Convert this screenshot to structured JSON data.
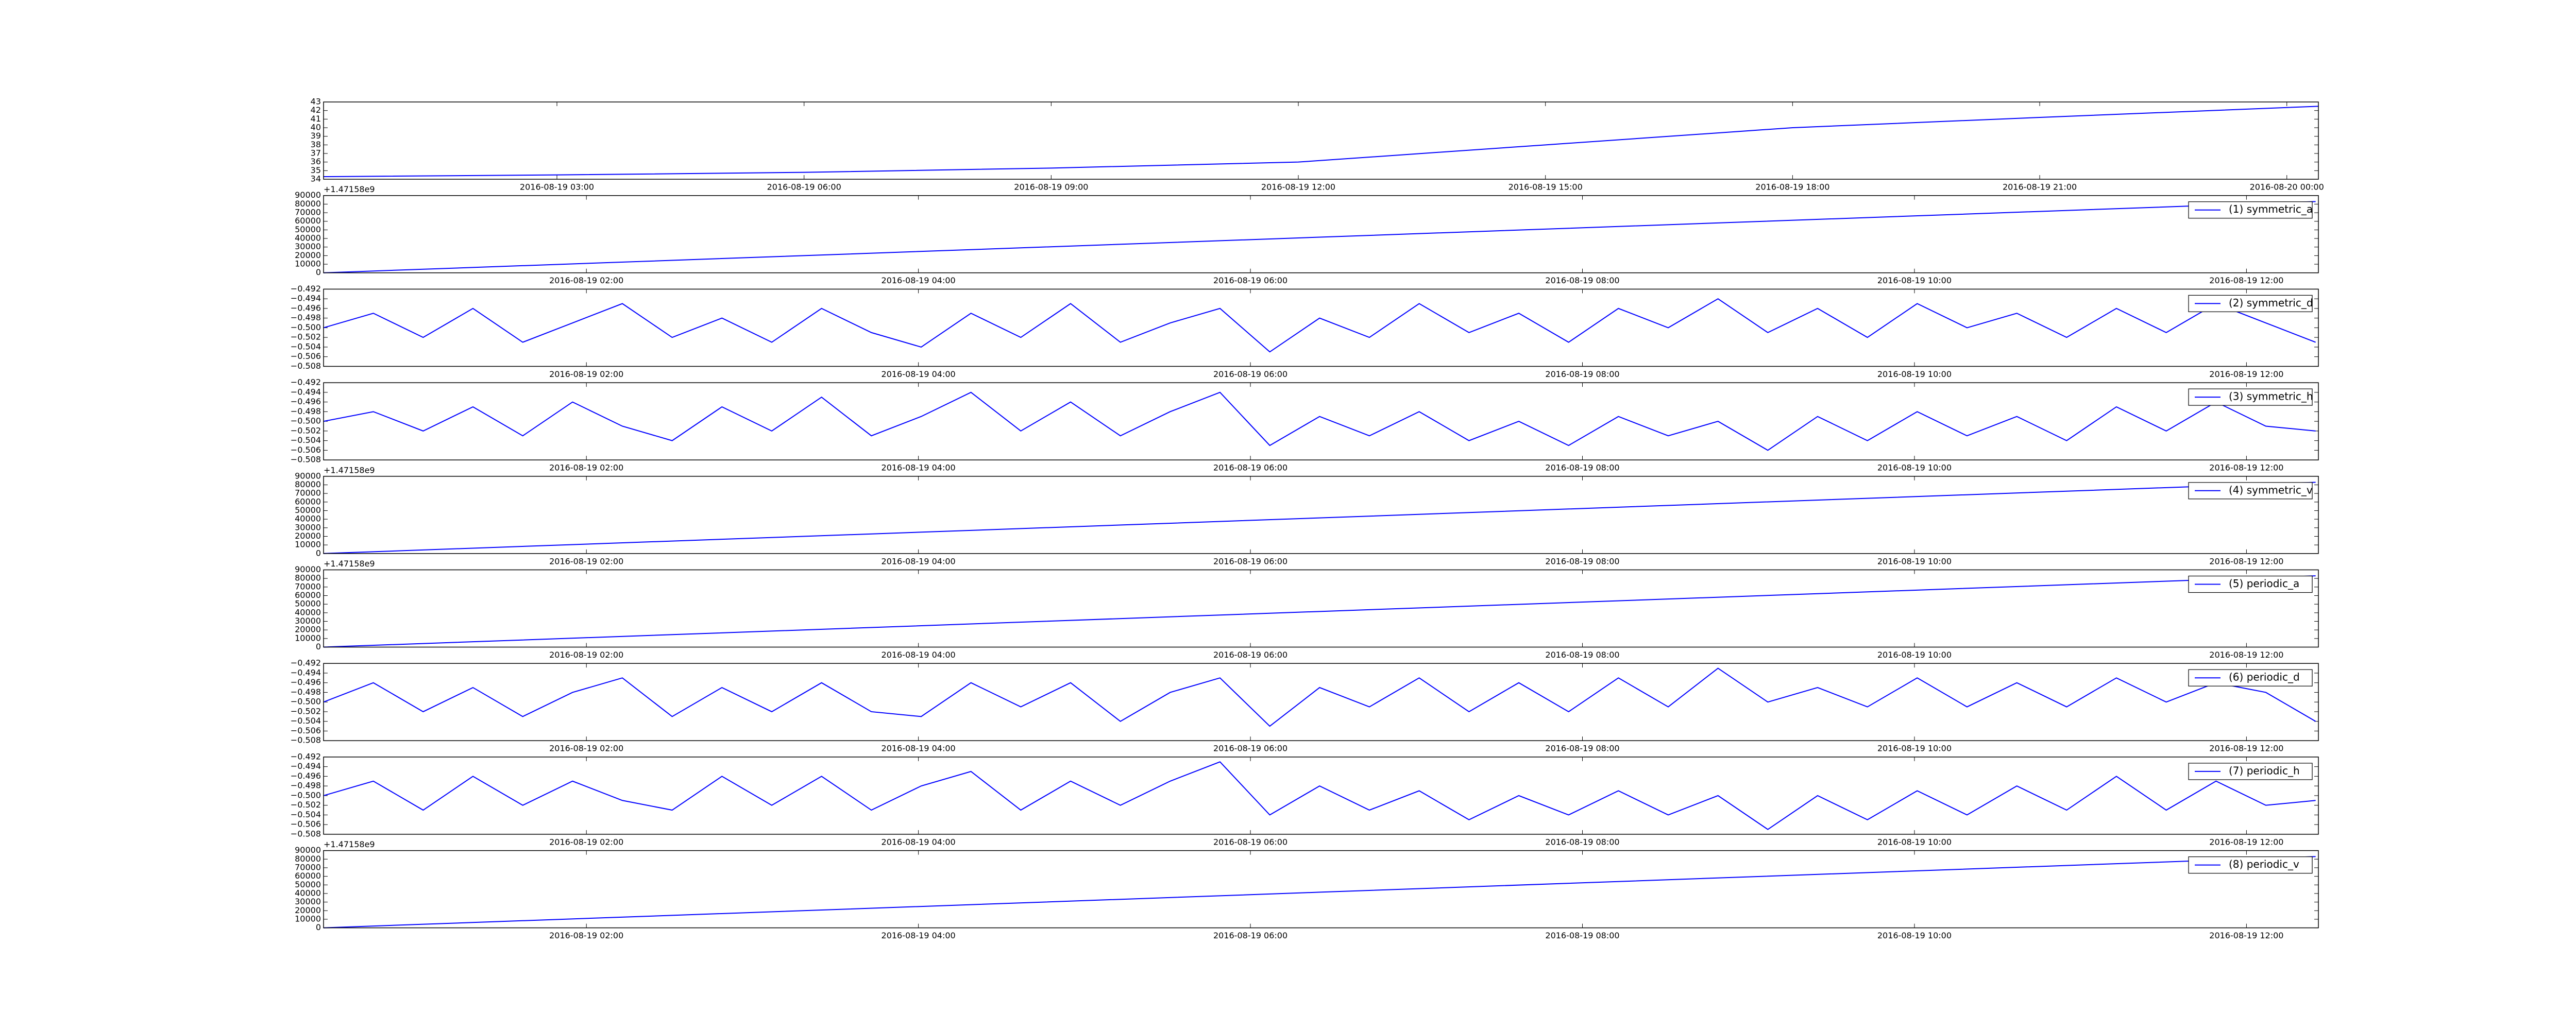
{
  "chart_data": [
    {
      "type": "line",
      "x": [
        "2016-08-19 00:10",
        "2016-08-19 03:00",
        "2016-08-19 06:00",
        "2016-08-19 09:00",
        "2016-08-19 12:00",
        "2016-08-19 15:00",
        "2016-08-19 18:00",
        "2016-08-19 21:00",
        "2016-08-20 00:23"
      ],
      "series": [
        {
          "color": "#0000ff",
          "values": [
            34.3,
            34.5,
            34.8,
            35.3,
            36.0,
            38.0,
            40.0,
            41.2,
            42.5
          ]
        }
      ],
      "xlim": [
        "2016-08-19 00:10",
        "2016-08-20 00:23"
      ],
      "ylim": [
        34,
        43
      ],
      "xticks": [
        "2016-08-19 03:00",
        "2016-08-19 06:00",
        "2016-08-19 09:00",
        "2016-08-19 12:00",
        "2016-08-19 15:00",
        "2016-08-19 18:00",
        "2016-08-19 21:00",
        "2016-08-20 00:00"
      ],
      "yticks": [
        34,
        35,
        36,
        37,
        38,
        39,
        40,
        41,
        42,
        43
      ]
    },
    {
      "type": "line",
      "x": [
        "2016-08-19 00:25",
        "2016-08-19 06:25",
        "2016-08-19 12:25"
      ],
      "series": [
        {
          "name": "(1) symmetric_a",
          "color": "#0000ff",
          "values": [
            0,
            41500,
            83000
          ]
        }
      ],
      "xlim": [
        "2016-08-19 00:25",
        "2016-08-19 12:26"
      ],
      "ylim": [
        0,
        90000
      ],
      "xticks": [
        "2016-08-19 02:00",
        "2016-08-19 04:00",
        "2016-08-19 06:00",
        "2016-08-19 08:00",
        "2016-08-19 10:00",
        "2016-08-19 12:00"
      ],
      "yticks": [
        0,
        10000,
        20000,
        30000,
        40000,
        50000,
        60000,
        70000,
        80000,
        90000
      ],
      "y_offset_text": "+1.47158e9",
      "legend": "upper right"
    },
    {
      "type": "line",
      "x": [
        "2016-08-19 00:25",
        "2016-08-19 00:43",
        "2016-08-19 01:01",
        "2016-08-19 01:19",
        "2016-08-19 01:37",
        "2016-08-19 01:55",
        "2016-08-19 02:13",
        "2016-08-19 02:31",
        "2016-08-19 02:49",
        "2016-08-19 03:07",
        "2016-08-19 03:25",
        "2016-08-19 03:43",
        "2016-08-19 04:01",
        "2016-08-19 04:19",
        "2016-08-19 04:37",
        "2016-08-19 04:55",
        "2016-08-19 05:13",
        "2016-08-19 05:31",
        "2016-08-19 05:49",
        "2016-08-19 06:07",
        "2016-08-19 06:25",
        "2016-08-19 06:43",
        "2016-08-19 07:01",
        "2016-08-19 07:19",
        "2016-08-19 07:37",
        "2016-08-19 07:55",
        "2016-08-19 08:13",
        "2016-08-19 08:31",
        "2016-08-19 08:49",
        "2016-08-19 09:07",
        "2016-08-19 09:25",
        "2016-08-19 09:43",
        "2016-08-19 10:01",
        "2016-08-19 10:19",
        "2016-08-19 10:37",
        "2016-08-19 10:55",
        "2016-08-19 11:13",
        "2016-08-19 11:31",
        "2016-08-19 11:49",
        "2016-08-19 12:07",
        "2016-08-19 12:25"
      ],
      "series": [
        {
          "name": "(2) symmetric_d",
          "color": "#0000ff",
          "values": [
            -0.5,
            -0.497,
            -0.502,
            -0.496,
            -0.503,
            -0.499,
            -0.495,
            -0.502,
            -0.498,
            -0.503,
            -0.496,
            -0.501,
            -0.504,
            -0.497,
            -0.502,
            -0.495,
            -0.503,
            -0.499,
            -0.496,
            -0.505,
            -0.498,
            -0.502,
            -0.495,
            -0.501,
            -0.497,
            -0.503,
            -0.496,
            -0.5,
            -0.494,
            -0.501,
            -0.496,
            -0.502,
            -0.495,
            -0.5,
            -0.497,
            -0.502,
            -0.496,
            -0.501,
            -0.495,
            -0.499,
            -0.503
          ]
        }
      ],
      "xlim": [
        "2016-08-19 00:25",
        "2016-08-19 12:26"
      ],
      "ylim": [
        -0.508,
        -0.492
      ],
      "xticks": [
        "2016-08-19 02:00",
        "2016-08-19 04:00",
        "2016-08-19 06:00",
        "2016-08-19 08:00",
        "2016-08-19 10:00",
        "2016-08-19 12:00"
      ],
      "yticks": [
        {
          "value": -0.508,
          "label": "−0.508"
        },
        {
          "value": -0.506,
          "label": "−0.506"
        },
        {
          "value": -0.504,
          "label": "−0.504"
        },
        {
          "value": -0.502,
          "label": "−0.502"
        },
        {
          "value": -0.5,
          "label": "−0.500"
        },
        {
          "value": -0.498,
          "label": "−0.498"
        },
        {
          "value": -0.496,
          "label": "−0.496"
        },
        {
          "value": -0.494,
          "label": "−0.494"
        },
        {
          "value": -0.492,
          "label": "−0.492"
        }
      ],
      "legend": "upper right"
    },
    {
      "type": "line",
      "x": [
        "2016-08-19 00:25",
        "2016-08-19 00:43",
        "2016-08-19 01:01",
        "2016-08-19 01:19",
        "2016-08-19 01:37",
        "2016-08-19 01:55",
        "2016-08-19 02:13",
        "2016-08-19 02:31",
        "2016-08-19 02:49",
        "2016-08-19 03:07",
        "2016-08-19 03:25",
        "2016-08-19 03:43",
        "2016-08-19 04:01",
        "2016-08-19 04:19",
        "2016-08-19 04:37",
        "2016-08-19 04:55",
        "2016-08-19 05:13",
        "2016-08-19 05:31",
        "2016-08-19 05:49",
        "2016-08-19 06:07",
        "2016-08-19 06:25",
        "2016-08-19 06:43",
        "2016-08-19 07:01",
        "2016-08-19 07:19",
        "2016-08-19 07:37",
        "2016-08-19 07:55",
        "2016-08-19 08:13",
        "2016-08-19 08:31",
        "2016-08-19 08:49",
        "2016-08-19 09:07",
        "2016-08-19 09:25",
        "2016-08-19 09:43",
        "2016-08-19 10:01",
        "2016-08-19 10:19",
        "2016-08-19 10:37",
        "2016-08-19 10:55",
        "2016-08-19 11:13",
        "2016-08-19 11:31",
        "2016-08-19 11:49",
        "2016-08-19 12:07",
        "2016-08-19 12:25"
      ],
      "series": [
        {
          "name": "(3) symmetric_h",
          "color": "#0000ff",
          "values": [
            -0.5,
            -0.498,
            -0.502,
            -0.497,
            -0.503,
            -0.496,
            -0.501,
            -0.504,
            -0.497,
            -0.502,
            -0.495,
            -0.503,
            -0.499,
            -0.494,
            -0.502,
            -0.496,
            -0.503,
            -0.498,
            -0.494,
            -0.505,
            -0.499,
            -0.503,
            -0.498,
            -0.504,
            -0.5,
            -0.505,
            -0.499,
            -0.503,
            -0.5,
            -0.506,
            -0.499,
            -0.504,
            -0.498,
            -0.503,
            -0.499,
            -0.504,
            -0.497,
            -0.502,
            -0.496,
            -0.501,
            -0.502
          ]
        }
      ],
      "xlim": [
        "2016-08-19 00:25",
        "2016-08-19 12:26"
      ],
      "ylim": [
        -0.508,
        -0.492
      ],
      "xticks": [
        "2016-08-19 02:00",
        "2016-08-19 04:00",
        "2016-08-19 06:00",
        "2016-08-19 08:00",
        "2016-08-19 10:00",
        "2016-08-19 12:00"
      ],
      "yticks": [
        {
          "value": -0.508,
          "label": "−0.508"
        },
        {
          "value": -0.506,
          "label": "−0.506"
        },
        {
          "value": -0.504,
          "label": "−0.504"
        },
        {
          "value": -0.502,
          "label": "−0.502"
        },
        {
          "value": -0.5,
          "label": "−0.500"
        },
        {
          "value": -0.498,
          "label": "−0.498"
        },
        {
          "value": -0.496,
          "label": "−0.496"
        },
        {
          "value": -0.494,
          "label": "−0.494"
        },
        {
          "value": -0.492,
          "label": "−0.492"
        }
      ],
      "legend": "upper right"
    },
    {
      "type": "line",
      "x": [
        "2016-08-19 00:25",
        "2016-08-19 06:25",
        "2016-08-19 12:25"
      ],
      "series": [
        {
          "name": "(4) symmetric_v",
          "color": "#0000ff",
          "values": [
            0,
            41500,
            83000
          ]
        }
      ],
      "xlim": [
        "2016-08-19 00:25",
        "2016-08-19 12:26"
      ],
      "ylim": [
        0,
        90000
      ],
      "xticks": [
        "2016-08-19 02:00",
        "2016-08-19 04:00",
        "2016-08-19 06:00",
        "2016-08-19 08:00",
        "2016-08-19 10:00",
        "2016-08-19 12:00"
      ],
      "yticks": [
        0,
        10000,
        20000,
        30000,
        40000,
        50000,
        60000,
        70000,
        80000,
        90000
      ],
      "y_offset_text": "+1.47158e9",
      "legend": "upper right"
    },
    {
      "type": "line",
      "x": [
        "2016-08-19 00:25",
        "2016-08-19 06:25",
        "2016-08-19 12:25"
      ],
      "series": [
        {
          "name": "(5) periodic_a",
          "color": "#0000ff",
          "values": [
            0,
            41500,
            83000
          ]
        }
      ],
      "xlim": [
        "2016-08-19 00:25",
        "2016-08-19 12:26"
      ],
      "ylim": [
        0,
        90000
      ],
      "xticks": [
        "2016-08-19 02:00",
        "2016-08-19 04:00",
        "2016-08-19 06:00",
        "2016-08-19 08:00",
        "2016-08-19 10:00",
        "2016-08-19 12:00"
      ],
      "yticks": [
        0,
        10000,
        20000,
        30000,
        40000,
        50000,
        60000,
        70000,
        80000,
        90000
      ],
      "y_offset_text": "+1.47158e9",
      "legend": "upper right"
    },
    {
      "type": "line",
      "x": [
        "2016-08-19 00:25",
        "2016-08-19 00:43",
        "2016-08-19 01:01",
        "2016-08-19 01:19",
        "2016-08-19 01:37",
        "2016-08-19 01:55",
        "2016-08-19 02:13",
        "2016-08-19 02:31",
        "2016-08-19 02:49",
        "2016-08-19 03:07",
        "2016-08-19 03:25",
        "2016-08-19 03:43",
        "2016-08-19 04:01",
        "2016-08-19 04:19",
        "2016-08-19 04:37",
        "2016-08-19 04:55",
        "2016-08-19 05:13",
        "2016-08-19 05:31",
        "2016-08-19 05:49",
        "2016-08-19 06:07",
        "2016-08-19 06:25",
        "2016-08-19 06:43",
        "2016-08-19 07:01",
        "2016-08-19 07:19",
        "2016-08-19 07:37",
        "2016-08-19 07:55",
        "2016-08-19 08:13",
        "2016-08-19 08:31",
        "2016-08-19 08:49",
        "2016-08-19 09:07",
        "2016-08-19 09:25",
        "2016-08-19 09:43",
        "2016-08-19 10:01",
        "2016-08-19 10:19",
        "2016-08-19 10:37",
        "2016-08-19 10:55",
        "2016-08-19 11:13",
        "2016-08-19 11:31",
        "2016-08-19 11:49",
        "2016-08-19 12:07",
        "2016-08-19 12:25"
      ],
      "series": [
        {
          "name": "(6) periodic_d",
          "color": "#0000ff",
          "values": [
            -0.5,
            -0.496,
            -0.502,
            -0.497,
            -0.503,
            -0.498,
            -0.495,
            -0.503,
            -0.497,
            -0.502,
            -0.496,
            -0.502,
            -0.503,
            -0.496,
            -0.501,
            -0.496,
            -0.504,
            -0.498,
            -0.495,
            -0.505,
            -0.497,
            -0.501,
            -0.495,
            -0.502,
            -0.496,
            -0.502,
            -0.495,
            -0.501,
            -0.493,
            -0.5,
            -0.497,
            -0.501,
            -0.495,
            -0.501,
            -0.496,
            -0.501,
            -0.495,
            -0.5,
            -0.496,
            -0.498,
            -0.504
          ]
        }
      ],
      "xlim": [
        "2016-08-19 00:25",
        "2016-08-19 12:26"
      ],
      "ylim": [
        -0.508,
        -0.492
      ],
      "xticks": [
        "2016-08-19 02:00",
        "2016-08-19 04:00",
        "2016-08-19 06:00",
        "2016-08-19 08:00",
        "2016-08-19 10:00",
        "2016-08-19 12:00"
      ],
      "yticks": [
        {
          "value": -0.508,
          "label": "−0.508"
        },
        {
          "value": -0.506,
          "label": "−0.506"
        },
        {
          "value": -0.504,
          "label": "−0.504"
        },
        {
          "value": -0.502,
          "label": "−0.502"
        },
        {
          "value": -0.5,
          "label": "−0.500"
        },
        {
          "value": -0.498,
          "label": "−0.498"
        },
        {
          "value": -0.496,
          "label": "−0.496"
        },
        {
          "value": -0.494,
          "label": "−0.494"
        },
        {
          "value": -0.492,
          "label": "−0.492"
        }
      ],
      "legend": "upper right"
    },
    {
      "type": "line",
      "x": [
        "2016-08-19 00:25",
        "2016-08-19 00:43",
        "2016-08-19 01:01",
        "2016-08-19 01:19",
        "2016-08-19 01:37",
        "2016-08-19 01:55",
        "2016-08-19 02:13",
        "2016-08-19 02:31",
        "2016-08-19 02:49",
        "2016-08-19 03:07",
        "2016-08-19 03:25",
        "2016-08-19 03:43",
        "2016-08-19 04:01",
        "2016-08-19 04:19",
        "2016-08-19 04:37",
        "2016-08-19 04:55",
        "2016-08-19 05:13",
        "2016-08-19 05:31",
        "2016-08-19 05:49",
        "2016-08-19 06:07",
        "2016-08-19 06:25",
        "2016-08-19 06:43",
        "2016-08-19 07:01",
        "2016-08-19 07:19",
        "2016-08-19 07:37",
        "2016-08-19 07:55",
        "2016-08-19 08:13",
        "2016-08-19 08:31",
        "2016-08-19 08:49",
        "2016-08-19 09:07",
        "2016-08-19 09:25",
        "2016-08-19 09:43",
        "2016-08-19 10:01",
        "2016-08-19 10:19",
        "2016-08-19 10:37",
        "2016-08-19 10:55",
        "2016-08-19 11:13",
        "2016-08-19 11:31",
        "2016-08-19 11:49",
        "2016-08-19 12:07",
        "2016-08-19 12:25"
      ],
      "series": [
        {
          "name": "(7) periodic_h",
          "color": "#0000ff",
          "values": [
            -0.5,
            -0.497,
            -0.503,
            -0.496,
            -0.502,
            -0.497,
            -0.501,
            -0.503,
            -0.496,
            -0.502,
            -0.496,
            -0.503,
            -0.498,
            -0.495,
            -0.503,
            -0.497,
            -0.502,
            -0.497,
            -0.493,
            -0.504,
            -0.498,
            -0.503,
            -0.499,
            -0.505,
            -0.5,
            -0.504,
            -0.499,
            -0.504,
            -0.5,
            -0.507,
            -0.5,
            -0.505,
            -0.499,
            -0.504,
            -0.498,
            -0.503,
            -0.496,
            -0.503,
            -0.497,
            -0.502,
            -0.501
          ]
        }
      ],
      "xlim": [
        "2016-08-19 00:25",
        "2016-08-19 12:26"
      ],
      "ylim": [
        -0.508,
        -0.492
      ],
      "xticks": [
        "2016-08-19 02:00",
        "2016-08-19 04:00",
        "2016-08-19 06:00",
        "2016-08-19 08:00",
        "2016-08-19 10:00",
        "2016-08-19 12:00"
      ],
      "yticks": [
        {
          "value": -0.508,
          "label": "−0.508"
        },
        {
          "value": -0.506,
          "label": "−0.506"
        },
        {
          "value": -0.504,
          "label": "−0.504"
        },
        {
          "value": -0.502,
          "label": "−0.502"
        },
        {
          "value": -0.5,
          "label": "−0.500"
        },
        {
          "value": -0.498,
          "label": "−0.498"
        },
        {
          "value": -0.496,
          "label": "−0.496"
        },
        {
          "value": -0.494,
          "label": "−0.494"
        },
        {
          "value": -0.492,
          "label": "−0.492"
        }
      ],
      "legend": "upper right"
    },
    {
      "type": "line",
      "x": [
        "2016-08-19 00:25",
        "2016-08-19 06:25",
        "2016-08-19 12:25"
      ],
      "series": [
        {
          "name": "(8) periodic_v",
          "color": "#0000ff",
          "values": [
            0,
            41500,
            83000
          ]
        }
      ],
      "xlim": [
        "2016-08-19 00:25",
        "2016-08-19 12:26"
      ],
      "ylim": [
        0,
        90000
      ],
      "xticks": [
        "2016-08-19 02:00",
        "2016-08-19 04:00",
        "2016-08-19 06:00",
        "2016-08-19 08:00",
        "2016-08-19 10:00",
        "2016-08-19 12:00"
      ],
      "yticks": [
        0,
        10000,
        20000,
        30000,
        40000,
        50000,
        60000,
        70000,
        80000,
        90000
      ],
      "y_offset_text": "+1.47158e9",
      "legend": "upper right"
    }
  ]
}
